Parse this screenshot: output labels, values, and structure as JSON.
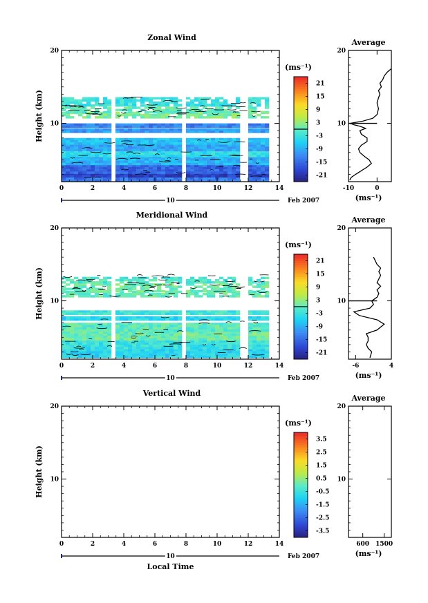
{
  "date_label": "Feb 2007",
  "day_label": "10",
  "xlabel_bottom": "Local Time",
  "avg_title": "Average",
  "chart_data": [
    {
      "type": "heatmap",
      "title": "Zonal Wind",
      "ylabel": "Height (km)",
      "xlabel": "",
      "xlim": [
        0,
        14
      ],
      "ylim": [
        2,
        20
      ],
      "xticks": [
        0,
        2,
        4,
        6,
        8,
        10,
        12,
        14
      ],
      "xtick_labels": [
        "0",
        "2",
        "4",
        "6",
        "8",
        "10",
        "12",
        "14"
      ],
      "yticks": [
        10,
        20
      ],
      "ytick_labels": [
        "10",
        "20"
      ],
      "colorbar": {
        "label": "(ms⁻¹)",
        "range": [
          -24,
          24
        ],
        "ticks": [
          21,
          15,
          9,
          3,
          -3,
          -9,
          -15,
          -21
        ],
        "tick_labels": [
          "21",
          "15",
          "9",
          "3",
          "-3",
          "-9",
          "-15",
          "-21"
        ],
        "zero_line": 0
      },
      "data_gaps_hours": [
        [
          3.1,
          3.4
        ],
        [
          7.7,
          8.1
        ],
        [
          11.6,
          12.0
        ],
        [
          13.5,
          14.0
        ]
      ],
      "average": {
        "xlabel": "(ms⁻¹)",
        "xlim": [
          -10,
          5
        ],
        "xticks": [
          -10,
          0
        ],
        "xtick_labels": [
          "-10",
          "0"
        ],
        "ylim": [
          2,
          20
        ],
        "yticks": [
          10,
          20
        ],
        "ytick_labels": [
          "10",
          "20"
        ],
        "zero_line": 0,
        "x": [
          -9.6,
          -9.0,
          -7.5,
          -5.5,
          -3.5,
          -2.0,
          -2.8,
          -4.5,
          -6.0,
          -6.5,
          -5.5,
          -3.5,
          -3.5,
          -5.5,
          -6.0,
          -4.0,
          -6.0,
          -8.0,
          -9.5,
          -5.0,
          -1.5,
          0.0,
          0.5,
          0.0,
          0.5,
          1.0,
          0.5,
          1.5,
          1.0,
          2.0,
          2.5,
          3.5,
          5.0
        ],
        "y": [
          2.2,
          2.6,
          3.0,
          3.5,
          4.0,
          4.5,
          5.0,
          5.5,
          6.0,
          6.5,
          7.0,
          7.5,
          8.0,
          8.5,
          9.0,
          9.3,
          9.6,
          9.8,
          10.0,
          10.3,
          10.7,
          11.2,
          12.0,
          12.8,
          13.5,
          14.0,
          14.5,
          15.0,
          15.5,
          16.0,
          16.5,
          17.0,
          17.5
        ]
      }
    },
    {
      "type": "heatmap",
      "title": "Meridional Wind",
      "ylabel": "Height (km)",
      "xlabel": "",
      "xlim": [
        0,
        14
      ],
      "ylim": [
        2,
        20
      ],
      "xticks": [
        0,
        2,
        4,
        6,
        8,
        10,
        12,
        14
      ],
      "xtick_labels": [
        "0",
        "2",
        "4",
        "6",
        "8",
        "10",
        "12",
        "14"
      ],
      "yticks": [
        10,
        20
      ],
      "ytick_labels": [
        "10",
        "20"
      ],
      "colorbar": {
        "label": "(ms⁻¹)",
        "range": [
          -24,
          24
        ],
        "ticks": [
          21,
          15,
          9,
          3,
          -3,
          -9,
          -15,
          -21
        ],
        "tick_labels": [
          "21",
          "15",
          "9",
          "3",
          "-3",
          "-9",
          "-15",
          "-21"
        ],
        "zero_line": 0
      },
      "data_gaps_hours": [
        [
          3.1,
          3.4
        ],
        [
          7.7,
          8.1
        ],
        [
          11.6,
          12.0
        ],
        [
          13.5,
          14.0
        ]
      ],
      "average": {
        "xlabel": "(ms⁻¹)",
        "xlim": [
          -8,
          4
        ],
        "xticks": [
          -6,
          4
        ],
        "xtick_labels": [
          "-6",
          "4"
        ],
        "ylim": [
          2,
          20
        ],
        "yticks": [
          10,
          20
        ],
        "ytick_labels": [
          "10",
          "20"
        ],
        "zero_line": 0,
        "x": [
          -2.0,
          -1.5,
          -2.5,
          -3.0,
          -2.5,
          -2.5,
          -3.0,
          0.0,
          2.0,
          0.0,
          -5.0,
          -6.5,
          -2.0,
          -1.0,
          -1.5,
          0.0,
          0.5,
          0.0,
          1.0,
          0.0,
          0.5,
          1.0,
          0.5,
          1.0,
          0.0,
          -1.0
        ],
        "y": [
          2.2,
          3.0,
          3.5,
          4.0,
          4.5,
          5.0,
          5.5,
          6.0,
          6.8,
          7.4,
          8.0,
          8.5,
          9.0,
          9.5,
          10.0,
          10.5,
          11.0,
          11.5,
          12.0,
          12.5,
          13.0,
          13.5,
          14.0,
          14.5,
          15.0,
          16.0
        ]
      }
    },
    {
      "type": "heatmap",
      "title": "Vertical Wind",
      "ylabel": "Height (km)",
      "xlabel": "Local Time",
      "xlim": [
        0,
        14
      ],
      "ylim": [
        2,
        20
      ],
      "xticks": [
        0,
        2,
        4,
        6,
        8,
        10,
        12,
        14
      ],
      "xtick_labels": [
        "0",
        "2",
        "4",
        "6",
        "8",
        "10",
        "12",
        "14"
      ],
      "yticks": [
        10,
        20
      ],
      "ytick_labels": [
        "10",
        "20"
      ],
      "colorbar": {
        "label": "(ms⁻¹)",
        "range": [
          -4,
          4
        ],
        "ticks": [
          3.5,
          2.5,
          1.5,
          0.5,
          -0.5,
          -1.5,
          -2.5,
          -3.5
        ],
        "tick_labels": [
          "3.5",
          "2.5",
          "1.5",
          "0.5",
          "-0.5",
          "-1.5",
          "-2.5",
          "-3.5"
        ]
      },
      "average": {
        "xlabel": "(ms⁻¹)",
        "xlim": [
          0,
          1800
        ],
        "xticks": [
          600,
          1500
        ],
        "xtick_labels": [
          "600",
          "1500"
        ],
        "ylim": [
          2,
          20
        ],
        "yticks": [
          10,
          20
        ],
        "ytick_labels": [
          "10",
          "20"
        ],
        "x": [],
        "y": []
      }
    }
  ]
}
